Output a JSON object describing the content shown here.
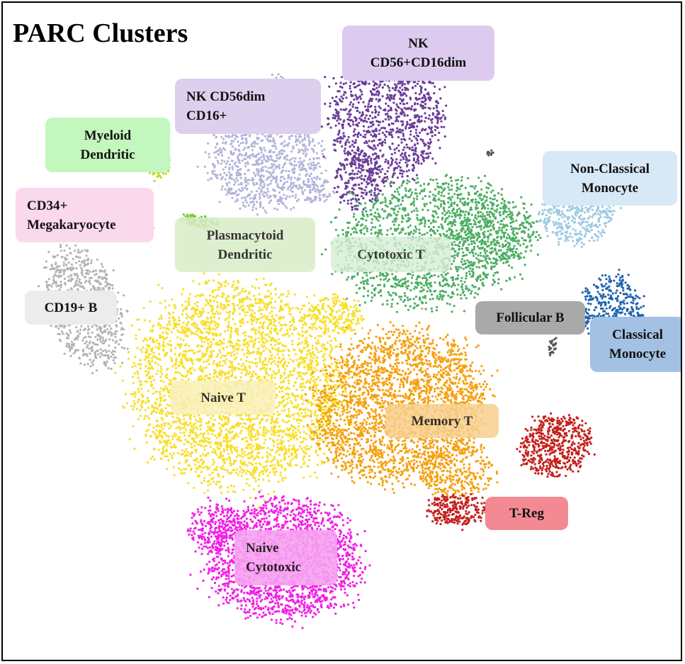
{
  "chart_data": {
    "type": "scatter",
    "title": "PARC Clusters",
    "xlabel": "",
    "ylabel": "",
    "grid": false,
    "legend": "none",
    "background": "#ffffff",
    "clusters": [
      {
        "name": "NK CD56+CD16dim",
        "label": "NK\nCD56+CD16dim",
        "color": "#6a3d9a",
        "label_bg": "#dccbee"
      },
      {
        "name": "NK CD56dim CD16+",
        "label": "NK CD56dim\nCD16+",
        "color": "#b3b3da",
        "label_bg": "#ddd0ee"
      },
      {
        "name": "Myeloid Dendritic",
        "label": "Myeloid\nDendritic",
        "color": "#b2e026",
        "label_bg": "#c3f7bd"
      },
      {
        "name": "CD34+ Megakaryocyte",
        "label": "CD34+\nMegakaryocyte",
        "color": "#e35ba0",
        "label_bg": "#fbd9ec"
      },
      {
        "name": "Plasmacytoid Dendritic",
        "label": "Plasmacytoid\nDendritic",
        "color": "#7ccb3d",
        "label_bg": "#d8edc6"
      },
      {
        "name": "Cytotoxic T",
        "label": "Cytotoxic T",
        "color": "#4cae62",
        "label_bg": "#d6eed5"
      },
      {
        "name": "Non-Classical Monocyte",
        "label": "Non-Classical\nMonocyte",
        "color": "#9ecae1",
        "label_bg": "#d7e8f6"
      },
      {
        "name": "CD19+ B",
        "label": "CD19+ B",
        "color": "#b3b3b3",
        "label_bg": "#ececec"
      },
      {
        "name": "Follicular B",
        "label": "Follicular B",
        "color": "#555555",
        "label_bg": "#a9a9a9"
      },
      {
        "name": "Classical Monocyte",
        "label": "Classical\nMonocyte",
        "color": "#1f63ad",
        "label_bg": "#a2c1e3"
      },
      {
        "name": "Naive T",
        "label": "Naive T",
        "color": "#f7df2a",
        "label_bg": "#faf0b8"
      },
      {
        "name": "Memory T",
        "label": "Memory T",
        "color": "#f5a00f",
        "label_bg": "#f8cf8c"
      },
      {
        "name": "T-Reg",
        "label": "T-Reg",
        "color": "#c4201c",
        "label_bg": "#f38a93"
      },
      {
        "name": "Naive Cytotoxic",
        "label": "Naive\nCytotoxic",
        "color": "#f21fe6",
        "label_bg": "#f7a1f0"
      }
    ]
  }
}
